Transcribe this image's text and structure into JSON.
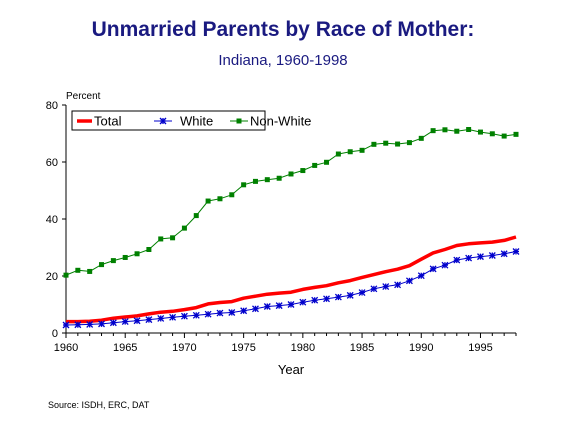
{
  "chart_data": {
    "type": "line",
    "title": "Unmarried Parents by Race of Mother:",
    "subtitle": "Indiana, 1960-1998",
    "xlabel": "Year",
    "ylabel": "Percent",
    "source": "Source:  ISDH, ERC, DAT",
    "xlim": [
      1960,
      1998
    ],
    "ylim": [
      0,
      80
    ],
    "xticks": [
      1960,
      1965,
      1970,
      1975,
      1980,
      1985,
      1990,
      1995
    ],
    "yticks": [
      0,
      20,
      40,
      60,
      80
    ],
    "legend_placement": "top-left",
    "grid": false,
    "x": [
      1960,
      1961,
      1962,
      1963,
      1964,
      1965,
      1966,
      1967,
      1968,
      1969,
      1970,
      1971,
      1972,
      1973,
      1974,
      1975,
      1976,
      1977,
      1978,
      1979,
      1980,
      1981,
      1982,
      1983,
      1984,
      1985,
      1986,
      1987,
      1988,
      1989,
      1990,
      1991,
      1992,
      1993,
      1994,
      1995,
      1996,
      1997,
      1998
    ],
    "series": [
      {
        "name": "Total",
        "color": "#ff0000",
        "marker": "none",
        "values": [
          4.0,
          4.0,
          4.1,
          4.5,
          5.2,
          5.6,
          6.0,
          6.7,
          7.3,
          7.6,
          8.2,
          8.9,
          10.2,
          10.7,
          11.0,
          12.2,
          12.9,
          13.6,
          14.0,
          14.3,
          15.3,
          16.0,
          16.6,
          17.6,
          18.4,
          19.5,
          20.5,
          21.5,
          22.4,
          23.6,
          25.9,
          28.1,
          29.3,
          30.7,
          31.3,
          31.6,
          31.9,
          32.5,
          33.7
        ]
      },
      {
        "name": "White",
        "color": "#0000cc",
        "marker": "asterisk",
        "values": [
          2.8,
          2.9,
          3.0,
          3.2,
          3.6,
          4.0,
          4.3,
          4.7,
          5.1,
          5.5,
          5.9,
          6.2,
          6.6,
          7.0,
          7.2,
          7.8,
          8.5,
          9.3,
          9.6,
          10.0,
          10.8,
          11.5,
          12.0,
          12.6,
          13.2,
          14.2,
          15.5,
          16.3,
          16.9,
          18.3,
          20.1,
          22.5,
          23.8,
          25.6,
          26.3,
          26.8,
          27.2,
          27.8,
          28.6
        ]
      },
      {
        "name": "Non-White",
        "color": "#008000",
        "marker": "square",
        "values": [
          20.3,
          22.0,
          21.6,
          24.0,
          25.4,
          26.5,
          27.8,
          29.3,
          33.0,
          33.4,
          36.8,
          41.2,
          46.3,
          47.1,
          48.5,
          52.0,
          53.2,
          53.8,
          54.3,
          55.8,
          57.0,
          58.8,
          59.9,
          62.8,
          63.6,
          64.1,
          66.2,
          66.6,
          66.3,
          66.8,
          68.3,
          71.0,
          71.3,
          70.8,
          71.4,
          70.5,
          69.9,
          69.1,
          69.7
        ]
      }
    ]
  }
}
